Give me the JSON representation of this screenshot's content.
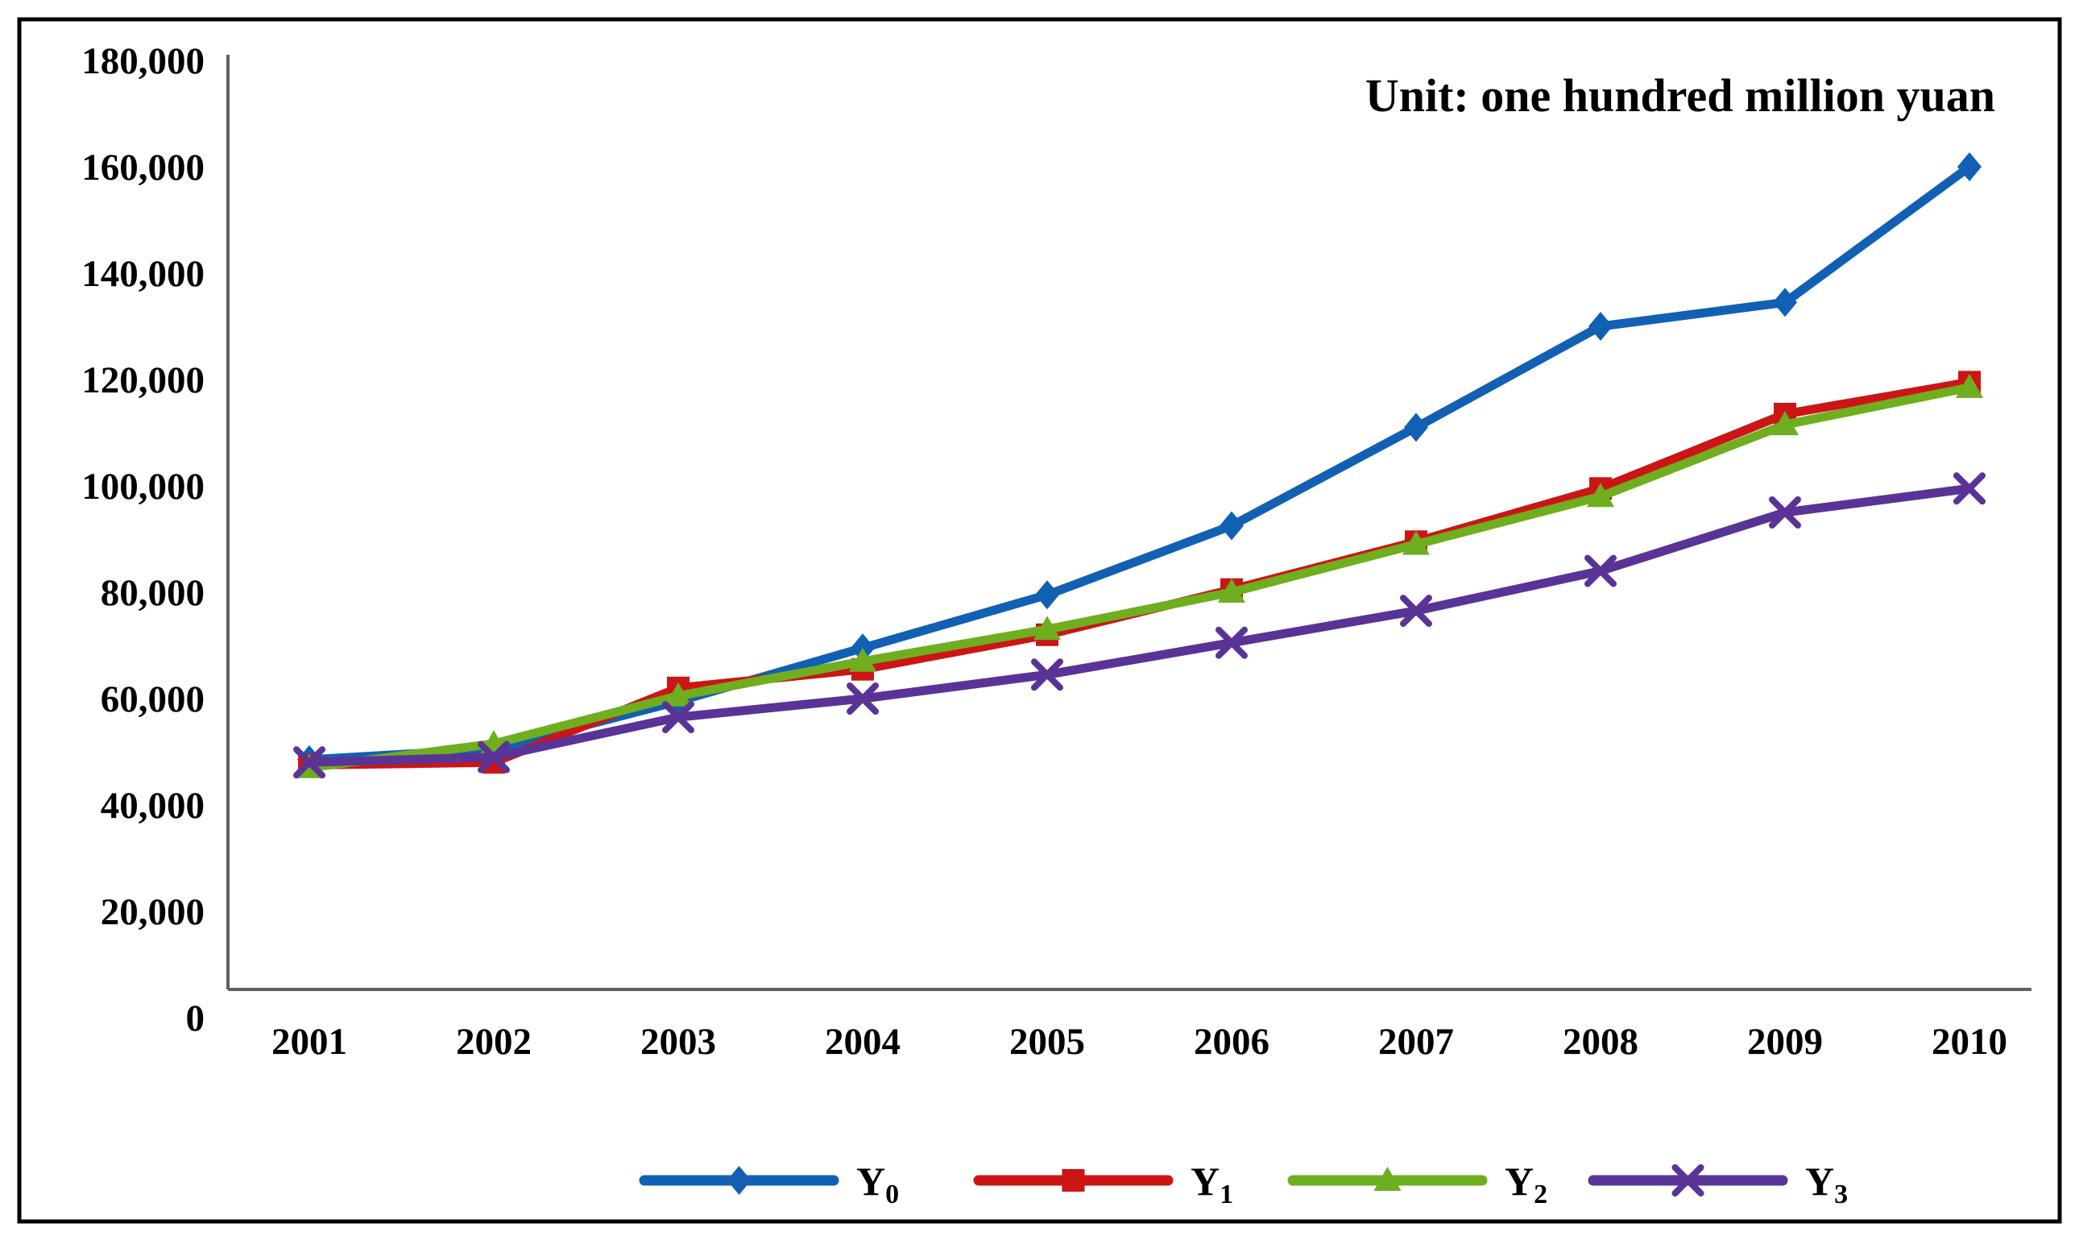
{
  "figure": {
    "background_color": "#ffffff",
    "border_color": "#000000",
    "axis_color": "#606060",
    "text_color": "#000000"
  },
  "chart_data": {
    "type": "line",
    "unit_label": "Unit: one hundred million yuan",
    "categories": [
      "2001",
      "2002",
      "2003",
      "2004",
      "2005",
      "2006",
      "2007",
      "2008",
      "2009",
      "2010"
    ],
    "y_axis": {
      "min": 0,
      "max": 180000,
      "step": 20000,
      "tick_labels": [
        "180,000",
        "160,000",
        "140,000",
        "120,000",
        "100,000",
        "80,000",
        "60,000",
        "40,000",
        "20,000",
        "0"
      ]
    },
    "grid": false,
    "legend": {
      "position": "bottom",
      "entries": [
        {
          "base": "Y",
          "sub": "0"
        },
        {
          "base": "Y",
          "sub": "1"
        },
        {
          "base": "Y",
          "sub": "2"
        },
        {
          "base": "Y",
          "sub": "3"
        }
      ]
    },
    "series": [
      {
        "name": "Y0",
        "color": "#1160B4",
        "marker": "diamond",
        "values": [
          48500,
          50500,
          59500,
          69500,
          79500,
          92500,
          111000,
          130000,
          134500,
          160000
        ]
      },
      {
        "name": "Y1",
        "color": "#CC1515",
        "marker": "square",
        "values": [
          47500,
          48000,
          62000,
          65500,
          72000,
          80500,
          89500,
          99500,
          113500,
          119500
        ]
      },
      {
        "name": "Y2",
        "color": "#6FAE1F",
        "marker": "triangle",
        "values": [
          47000,
          51500,
          60500,
          67000,
          73000,
          80000,
          89000,
          98000,
          111500,
          118500
        ]
      },
      {
        "name": "Y3",
        "color": "#5A3397",
        "marker": "x",
        "values": [
          48000,
          49000,
          56500,
          60000,
          64500,
          70500,
          76500,
          84000,
          95000,
          99500
        ]
      }
    ]
  }
}
